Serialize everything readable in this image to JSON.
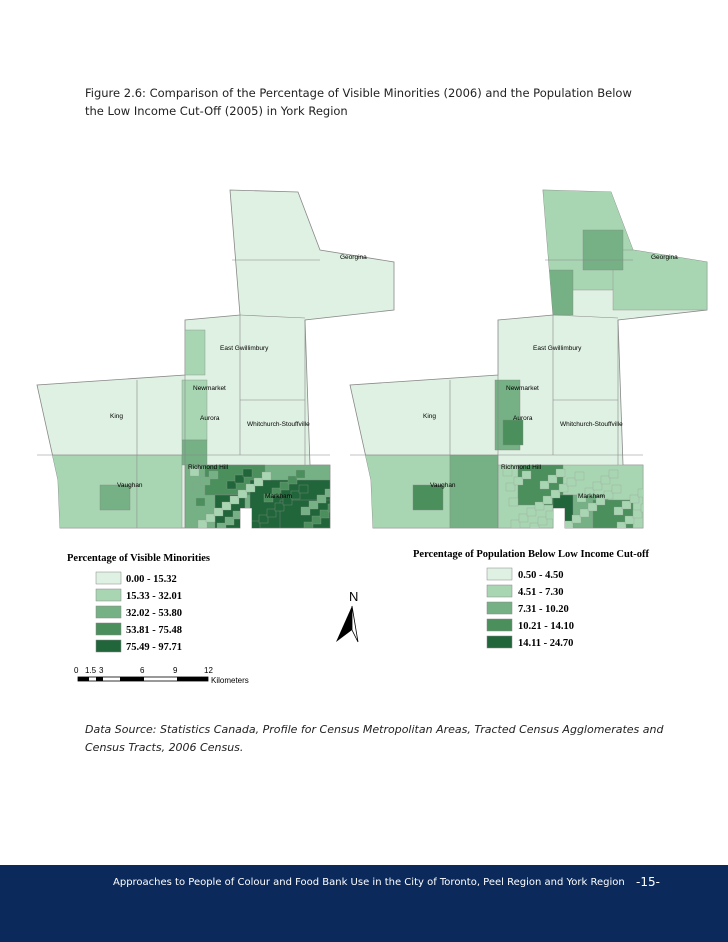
{
  "caption": {
    "line1": "Figure 2.6: Comparison of the Percentage of Visible Minorities (2006) and the Population Below",
    "line2": "the Low Income Cut-Off (2005) in York Region"
  },
  "maps": [
    {
      "labels": [
        "Georgina",
        "East Gwillimbury",
        "Newmarket",
        "King",
        "Aurora",
        "Whitchurch-Stouffville",
        "Richmond Hill",
        "Vaughan",
        "Markham"
      ]
    },
    {
      "labels": [
        "Georgina",
        "East Gwillimbury",
        "Newmarket",
        "King",
        "Aurora",
        "Whitchurch-Stouffville",
        "Richmond Hill",
        "Vaughan",
        "Markham"
      ]
    }
  ],
  "legends": [
    {
      "title": "Percentage of Visible Minorities",
      "items": [
        "0.00 - 15.32",
        "15.33 - 32.01",
        "32.02 - 53.80",
        "53.81 - 75.48",
        "75.49 - 97.71"
      ]
    },
    {
      "title": "Percentage of Population Below Low Income Cut-off",
      "items": [
        "0.50 - 4.50",
        "4.51 - 7.30",
        "7.31 - 10.20",
        "10.21 - 14.10",
        "14.11 - 24.70"
      ]
    }
  ],
  "north": "N",
  "scale": {
    "ticks": [
      "0",
      "1.5",
      "3",
      "6",
      "9",
      "12"
    ],
    "unit": "Kilometers"
  },
  "source": {
    "line1": "Data Source: Statistics Canada, Profile for Census Metropolitan Areas, Tracted Census Agglomerates and",
    "line2": "Census Tracts, 2006 Census."
  },
  "footer": {
    "text": "Approaches to People of Colour and Food Bank Use in the City of Toronto, Peel Region and York Region",
    "page": "-15-"
  }
}
